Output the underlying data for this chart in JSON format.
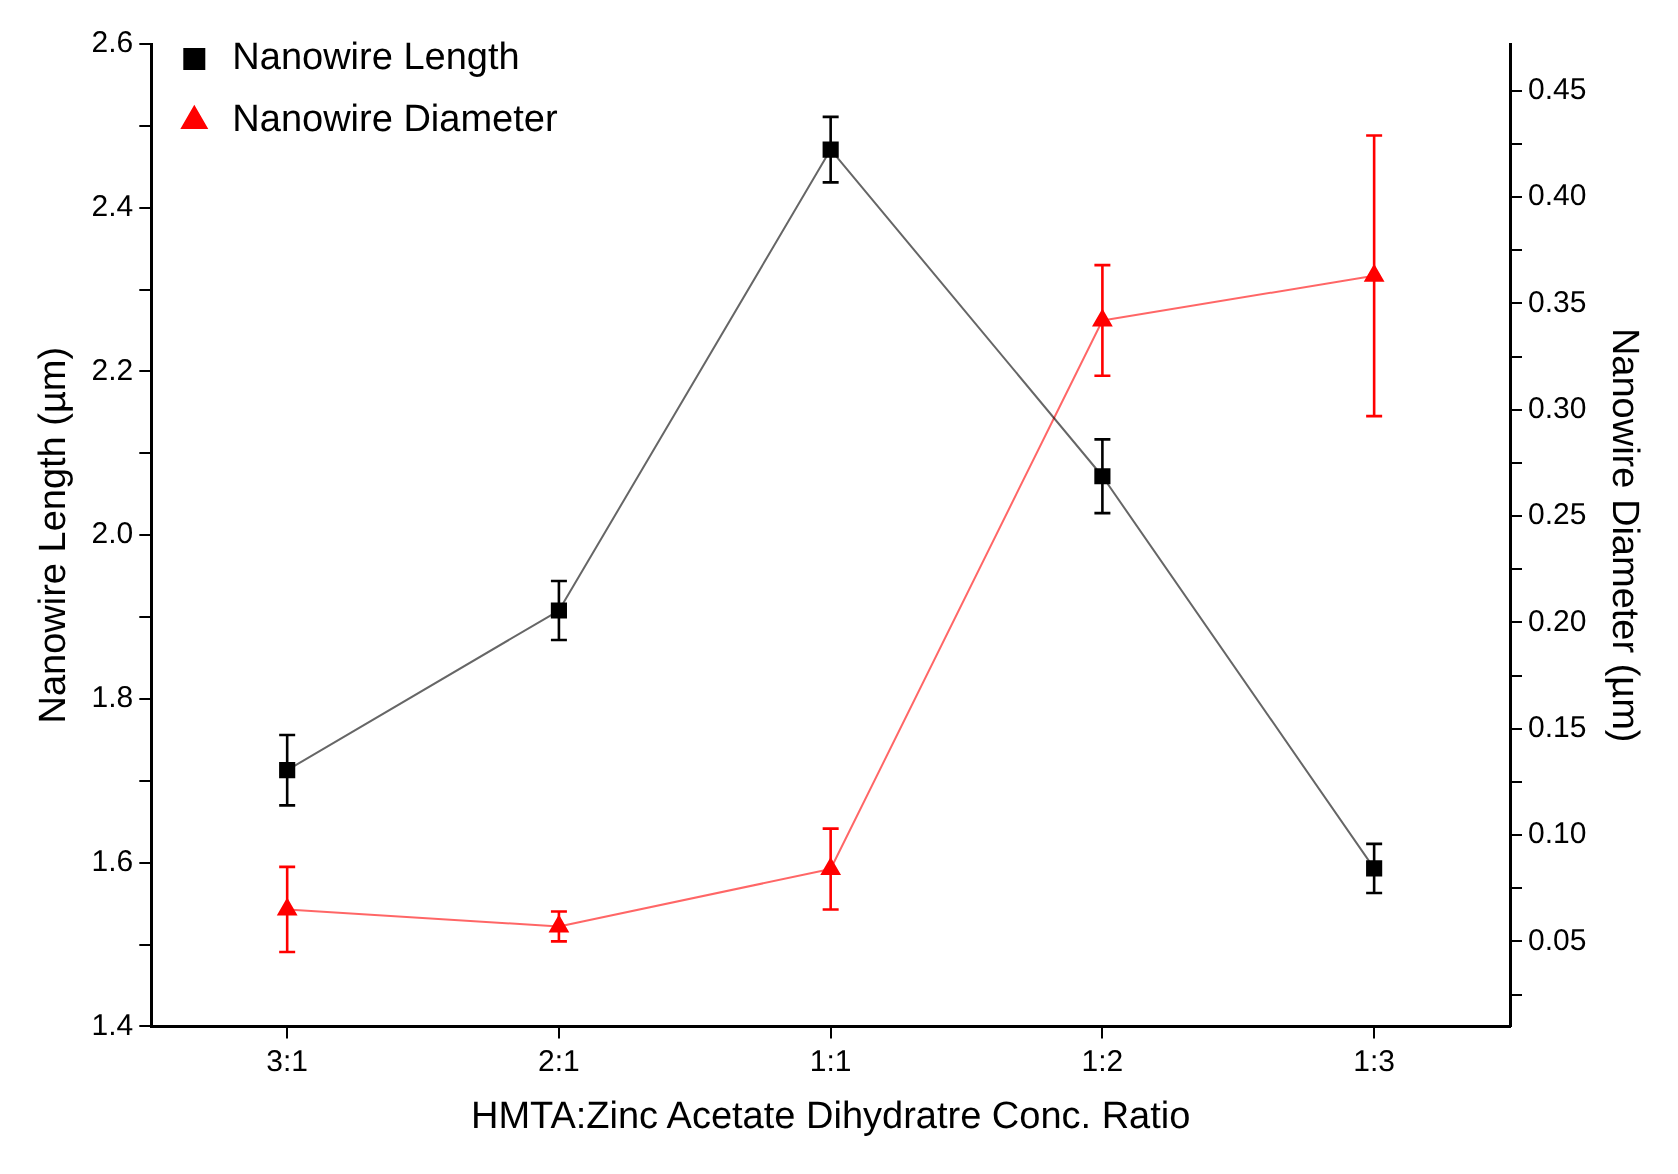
{
  "chart_data": {
    "type": "line",
    "xlabel": "HMTA:Zinc Acetate Dihydratre Conc. Ratio",
    "ylabel": "Nanowire Length (µm)",
    "y2label": "Nanowire Diameter (µm)",
    "categories": [
      "3:1",
      "2:1",
      "1:1",
      "1:2",
      "1:3"
    ],
    "series": [
      {
        "name": "Nanowire Length",
        "color": "#000000",
        "marker": "square",
        "values": [
          1.713,
          1.908,
          2.471,
          2.072,
          1.593
        ],
        "errors": [
          0.043,
          0.036,
          0.04,
          0.045,
          0.03
        ]
      },
      {
        "name": "Nanowire Diameter",
        "color": "#ff0000",
        "marker": "triangle",
        "axis": "y2",
        "values": [
          0.065,
          0.057,
          0.084,
          0.342,
          0.363
        ],
        "errors": [
          0.02,
          0.007,
          0.019,
          0.026,
          0.066
        ]
      }
    ],
    "ylim": [
      1.4,
      2.6
    ],
    "yticks": [
      1.4,
      {
        "value": 1.5,
        "label": null
      },
      1.6,
      {
        "value": 1.7,
        "label": null
      },
      1.8,
      {
        "value": 1.9,
        "label": null
      },
      {
        "value": 2,
        "label": "2.0"
      },
      {
        "value": 2.1,
        "label": null
      },
      2.2,
      {
        "value": 2.3,
        "label": null
      },
      2.4,
      {
        "value": 2.5,
        "label": null
      },
      2.6
    ],
    "y2lim": [
      0.01,
      0.472
    ],
    "y2ticks": [
      {
        "value": 0.025,
        "label": null
      },
      0.05,
      {
        "value": 0.075,
        "label": null
      },
      {
        "value": 0.1,
        "label": "0.10"
      },
      {
        "value": 0.125,
        "label": null
      },
      0.15,
      {
        "value": 0.175,
        "label": null
      },
      {
        "value": 0.2,
        "label": "0.20"
      },
      {
        "value": 0.225,
        "label": null
      },
      0.25,
      {
        "value": 0.275,
        "label": null
      },
      {
        "value": 0.3,
        "label": "0.30"
      },
      {
        "value": 0.325,
        "label": null
      },
      0.35,
      {
        "value": 0.375,
        "label": null
      },
      {
        "value": 0.4,
        "label": "0.40"
      },
      {
        "value": 0.425,
        "label": null
      },
      0.45
    ],
    "legend": "top left",
    "grid": false,
    "line_style": "solid"
  }
}
